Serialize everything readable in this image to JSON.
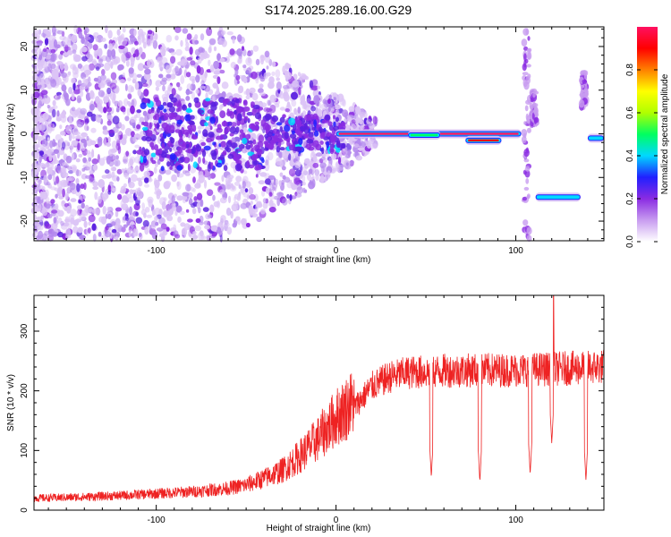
{
  "title": "S174.2025.289.16.00.G29",
  "chart_data": [
    {
      "type": "heatmap",
      "title": "S174.2025.289.16.00.G29",
      "xlabel": "Height of straight line (km)",
      "ylabel": "Frequency (Hz)",
      "xlim": [
        -168,
        149
      ],
      "ylim": [
        -24.5,
        24.5
      ],
      "xticks": [
        -100,
        0,
        100
      ],
      "xtick_labels": [
        "-100",
        "0",
        "100"
      ],
      "yticks": [
        -20,
        -10,
        0,
        10,
        20
      ],
      "ytick_labels": [
        "-20",
        "-10",
        "0",
        "10",
        "20"
      ],
      "colorbar": {
        "label": "Normalized spectral amplitude",
        "range": [
          0,
          1
        ],
        "ticks": [
          0.0,
          0.2,
          0.4,
          0.6,
          0.8
        ],
        "tick_labels": [
          "0.0",
          "0.2",
          "0.4",
          "0.6",
          "0.8"
        ],
        "colors": [
          "#ffffff",
          "#c89cf0",
          "#8a2be2",
          "#2020ff",
          "#00d8ff",
          "#00ff60",
          "#b0ff00",
          "#ffff00",
          "#ff8000",
          "#ff0000",
          "#ff1060"
        ]
      },
      "features": [
        {
          "name": "main-line",
          "x_range": [
            0,
            103
          ],
          "frequency": 0.0,
          "amplitude": 1.0
        },
        {
          "name": "segment-1",
          "x_range": [
            40,
            58
          ],
          "frequency": -0.3,
          "amplitude": 0.5
        },
        {
          "name": "segment-2",
          "x_range": [
            72,
            92
          ],
          "frequency": -1.5,
          "amplitude": 0.85
        },
        {
          "name": "offset-line",
          "x_range": [
            111,
            136
          ],
          "frequency": -14.5,
          "amplitude": 0.4
        },
        {
          "name": "end-line",
          "x_range": [
            140,
            149
          ],
          "frequency": -1.0,
          "amplitude": 0.35
        }
      ]
    },
    {
      "type": "line",
      "xlabel": "Height of straight line (km)",
      "ylabel": "SNR (10 * v/v)",
      "xlim": [
        -168,
        149
      ],
      "ylim": [
        0,
        360
      ],
      "xticks": [
        -100,
        0,
        100
      ],
      "xtick_labels": [
        "-100",
        "0",
        "100"
      ],
      "yticks": [
        0,
        100,
        200,
        300
      ],
      "ytick_labels": [
        "0",
        "100",
        "200",
        "300"
      ],
      "series": [
        {
          "name": "SNR",
          "color": "#ee2222",
          "x": [
            -168,
            -140,
            -120,
            -100,
            -80,
            -60,
            -50,
            -40,
            -30,
            -20,
            -10,
            0,
            10,
            20,
            30,
            40,
            60,
            80,
            100,
            120,
            140,
            149
          ],
          "y": [
            18,
            20,
            22,
            25,
            28,
            33,
            38,
            48,
            60,
            82,
            108,
            140,
            165,
            200,
            215,
            222,
            225,
            226,
            226,
            228,
            230,
            232
          ]
        }
      ],
      "dips": [
        {
          "x": 53,
          "y": 55
        },
        {
          "x": 80,
          "y": 48
        },
        {
          "x": 108,
          "y": 60
        },
        {
          "x": 120,
          "y": 112
        },
        {
          "x": 139,
          "y": 50
        }
      ],
      "peak": {
        "x": 121,
        "y": 360
      }
    }
  ]
}
